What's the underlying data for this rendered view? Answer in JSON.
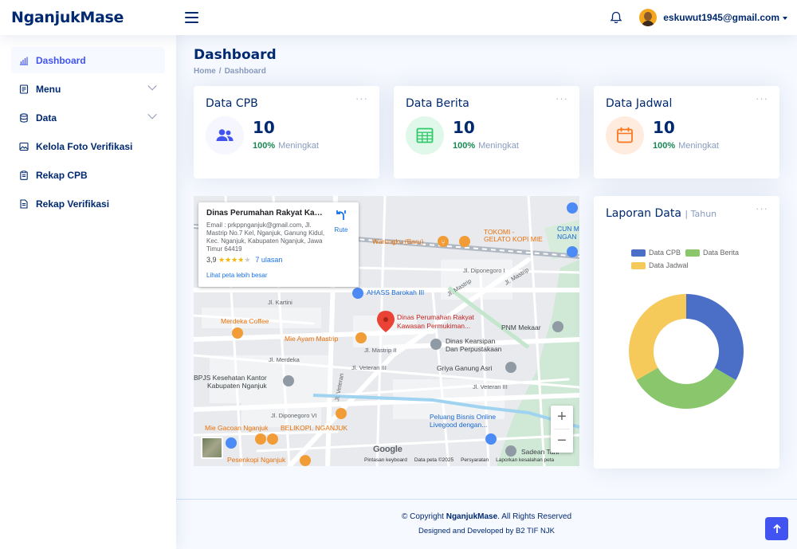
{
  "header": {
    "logo": "NganjukMase",
    "user_email": "eskuwut1945@gmail.com"
  },
  "sidebar": {
    "items": [
      {
        "label": "Dashboard",
        "icon": "bar-chart-icon",
        "active": true
      },
      {
        "label": "Menu",
        "icon": "menu-list-icon",
        "expandable": true
      },
      {
        "label": "Data",
        "icon": "database-icon",
        "expandable": true
      },
      {
        "label": "Kelola Foto Verifikasi",
        "icon": "image-icon"
      },
      {
        "label": "Rekap CPB",
        "icon": "clipboard-icon"
      },
      {
        "label": "Rekap Verifikasi",
        "icon": "document-icon"
      }
    ]
  },
  "page": {
    "title": "Dashboard",
    "breadcrumb_home": "Home",
    "breadcrumb_sep": "/",
    "breadcrumb_current": "Dashboard"
  },
  "cards": [
    {
      "title": "Data CPB",
      "value": "10",
      "percent": "100%",
      "note": "Meningkat",
      "icon": "people-icon",
      "color": "#4154f1",
      "bg": "#f6f6fe"
    },
    {
      "title": "Data Berita",
      "value": "10",
      "percent": "100%",
      "note": "Meningkat",
      "icon": "table-icon",
      "color": "#2eca6a",
      "bg": "#e0f8e9"
    },
    {
      "title": "Data Jadwal",
      "value": "10",
      "percent": "100%",
      "note": "Meningkat",
      "icon": "calendar-icon",
      "color": "#ff771d",
      "bg": "#ffecdf"
    }
  ],
  "map": {
    "place_title": "Dinas Perumahan Rakyat Kaw...",
    "address": "Email : prkppnganjuk@gmail.com, Jl. Mastrip No.7 Kel, Nganjuk, Ganung Kidul, Kec. Nganjuk, Kabupaten Nganjuk, Jawa Timur 64419",
    "rating": "3,9",
    "stars": "★★★★",
    "stars_empty": "★",
    "reviews": "7 ulasan",
    "larger_map": "Lihat peta lebih besar",
    "directions": "Rute",
    "zoom_in": "+",
    "zoom_out": "−",
    "google_logo": "Google",
    "attribution": [
      "Pintasan keyboard",
      "Data peta ©2025",
      "Persyaratan",
      "Laporkan kesalahan peta"
    ],
    "labels": {
      "main_place_1": "Dinas Perumahan Rakyat",
      "main_place_2": "Kawasan Permukiman...",
      "warungku": "Warungku (Baru)",
      "tokomi_1": "TOKOMI -",
      "tokomi_2": "GELATO KOPI MIE",
      "cun_1": "CUN M",
      "cun_2": "NGAN",
      "diponegoro_1": "Jl. Diponegoro I",
      "mastrip_1": "Jl. Mastrip",
      "mastrip_2": "Jl. Mastrip",
      "ahass": "AHASS Barokah III",
      "kartini": "Jl. Kartini",
      "merdeka_coffee": "Merdeka Coffee",
      "mie_ayam": "Mie Ayam Mastrip",
      "pnm": "PNM Mekaar",
      "kearsipan_1": "Dinas Kearsipan",
      "kearsipan_2": "Dan Perpustakaan",
      "mastrip_ii": "Jl. Mastrip II",
      "merdeka": "Jl. Merdeka",
      "veteran_iii": "Jl. Veteran III",
      "griya": "Griya Ganung Asri",
      "bpjs_1": "BPJS Kesehatan Kantor",
      "bpjs_2": "Kabupaten Nganjuk",
      "veteran_iii_b": "Jl. Veteran III",
      "diponegoro_vi": "Jl. Diponegoro VI",
      "veteran": "Jl. Veteran",
      "peluang_1": "Peluang Bisnis Online",
      "peluang_2": "Livegood dengan...",
      "gacoan": "Mie Gacoan Nganjuk",
      "belikopi": "BELIKOPI. NGANJUK",
      "pesenkopi": "Pesenkopi Nganjuk",
      "sadean": "Sadean Tani"
    }
  },
  "report": {
    "title": "Laporan Data",
    "subtitle": "| Tahun"
  },
  "chart_data": {
    "type": "pie",
    "style": "doughnut",
    "labels": [
      "Data CPB",
      "Data Berita",
      "Data Jadwal"
    ],
    "values": [
      10,
      10,
      10
    ],
    "colors": [
      "#4b6fc7",
      "#8ac66b",
      "#f6c95b"
    ],
    "legend": "top"
  },
  "footer": {
    "copy_prefix": "© Copyright ",
    "brand": "NganjukMase",
    "copy_suffix": ". All Rights Reserved",
    "credits": "Designed and Developed by B2 TIF NJK"
  }
}
